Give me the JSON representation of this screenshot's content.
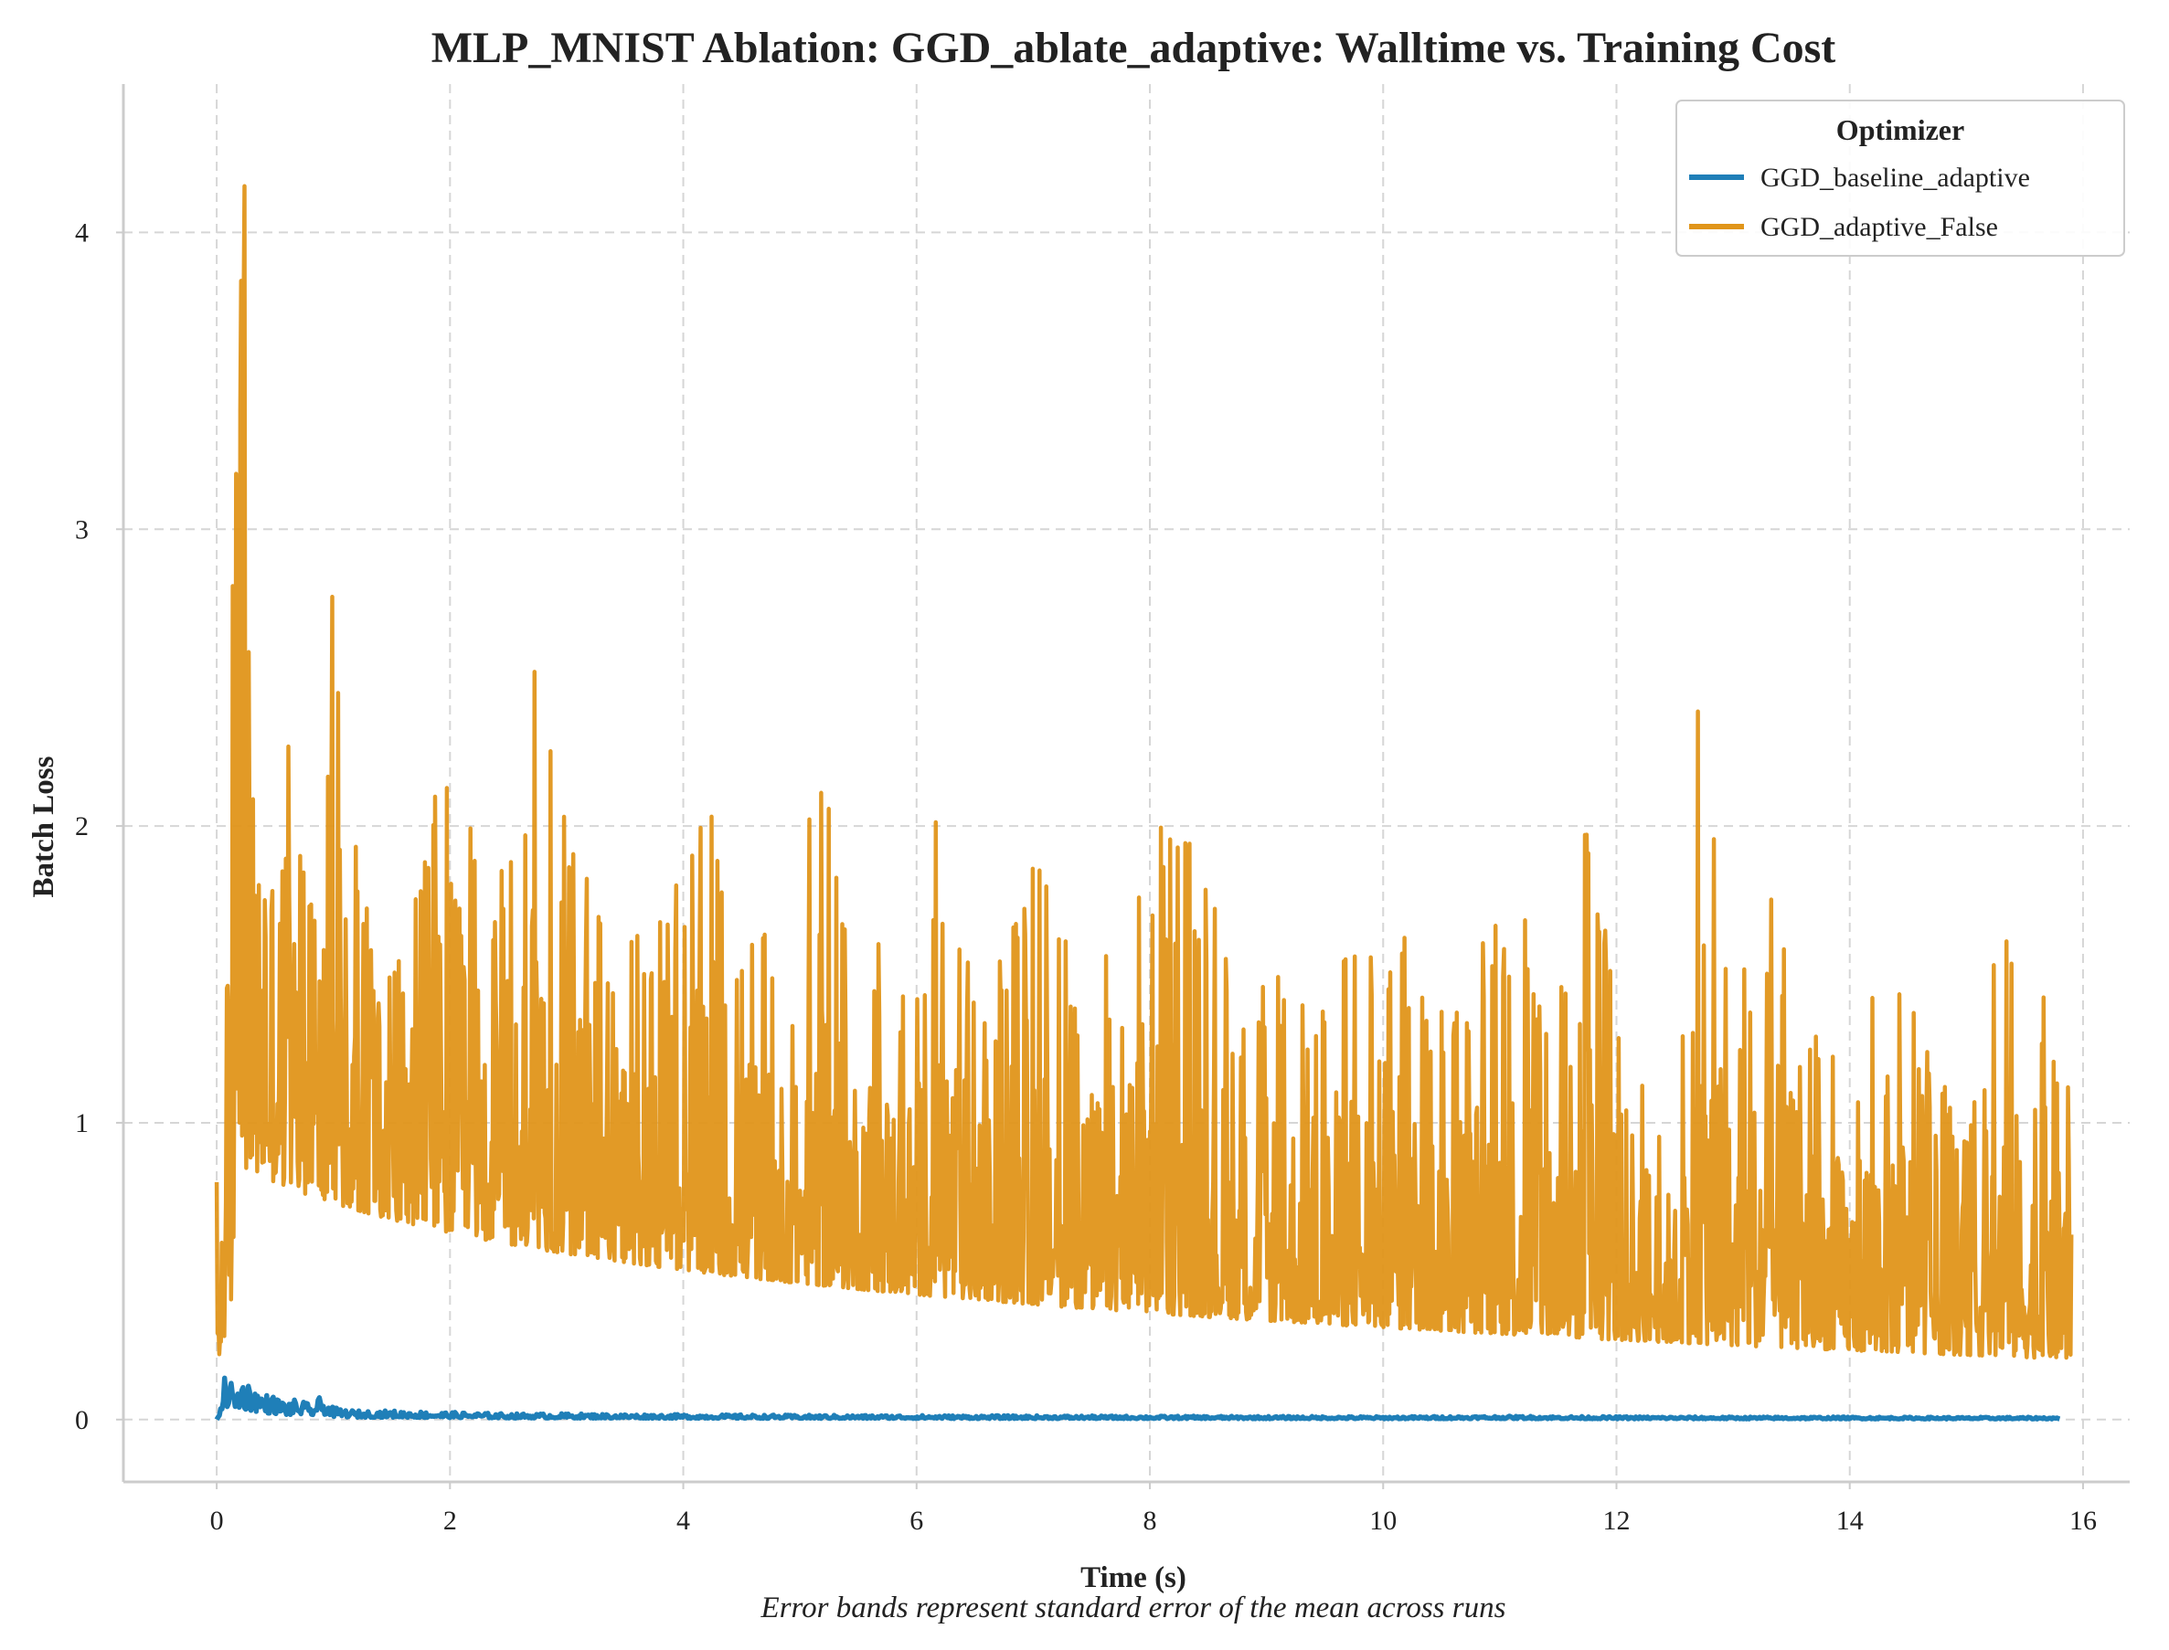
{
  "chart_data": {
    "type": "line",
    "title": "MLP_MNIST Ablation: GGD_ablate_adaptive: Walltime vs. Training Cost",
    "xlabel": "Time (s)",
    "ylabel": "Batch Loss",
    "caption": "Error bands represent standard error of the mean across runs",
    "xlim": [
      -0.8,
      16.4
    ],
    "ylim": [
      -0.21,
      4.5
    ],
    "x_ticks": [
      0,
      2,
      4,
      6,
      8,
      10,
      12,
      14,
      16
    ],
    "x_tick_labels": [
      "0",
      "2",
      "4",
      "6",
      "8",
      "10",
      "12",
      "14",
      "16"
    ],
    "y_ticks": [
      0,
      1,
      2,
      3,
      4
    ],
    "y_tick_labels": [
      "0",
      "1",
      "2",
      "3",
      "4"
    ],
    "grid": true,
    "legend": {
      "title": "Optimizer",
      "placement": "top-right"
    },
    "series": [
      {
        "name": "GGD_baseline_adaptive",
        "color": "#1f7fb8",
        "x": [
          0,
          0.05,
          0.1,
          0.15,
          0.2,
          0.3,
          0.4,
          0.5,
          0.6,
          0.7,
          0.8,
          0.9,
          1.0,
          1.2,
          1.5,
          2,
          2.5,
          3,
          3.5,
          4,
          5,
          6,
          7,
          8,
          9,
          10,
          11,
          12,
          13,
          14,
          15,
          15.8
        ],
        "y": [
          0.0,
          0.12,
          0.18,
          0.1,
          0.15,
          0.12,
          0.09,
          0.08,
          0.06,
          0.07,
          0.05,
          0.08,
          0.04,
          0.03,
          0.03,
          0.025,
          0.02,
          0.02,
          0.018,
          0.017,
          0.015,
          0.014,
          0.013,
          0.012,
          0.011,
          0.01,
          0.012,
          0.01,
          0.009,
          0.009,
          0.008,
          0.008
        ]
      },
      {
        "name": "GGD_adaptive_False",
        "color": "#e0951a",
        "x": [
          0,
          0.05,
          0.1,
          0.15,
          0.2,
          0.25,
          0.3,
          0.35,
          0.4,
          0.5,
          0.6,
          0.7,
          0.8,
          0.9,
          1.0,
          1.2,
          1.4,
          1.6,
          1.8,
          2.0,
          2.2,
          2.4,
          2.6,
          2.75,
          3.0,
          3.2,
          3.5,
          3.8,
          4.0,
          4.2,
          4.5,
          4.8,
          5.0,
          5.1,
          5.4,
          5.7,
          6.0,
          6.2,
          6.4,
          6.6,
          7.0,
          7.4,
          7.8,
          8.0,
          8.4,
          8.8,
          9.0,
          9.5,
          10.0,
          10.5,
          11.0,
          11.2,
          11.5,
          11.7,
          12.0,
          12.5,
          12.7,
          13.0,
          13.3,
          13.6,
          14.0,
          14.3,
          14.6,
          15.0,
          15.3,
          15.6,
          15.75,
          15.9
        ],
        "y": [
          0.8,
          1.2,
          2.6,
          3.1,
          3.8,
          4.28,
          2.9,
          2.6,
          3.25,
          2.5,
          2.8,
          2.3,
          1.8,
          2.2,
          2.9,
          1.9,
          1.5,
          1.6,
          2.05,
          2.56,
          2.0,
          1.9,
          2.05,
          2.62,
          2.0,
          1.8,
          1.6,
          1.75,
          1.95,
          2.4,
          1.7,
          1.6,
          1.5,
          2.42,
          1.8,
          1.6,
          1.5,
          2.15,
          1.6,
          1.4,
          2.0,
          1.5,
          1.65,
          2.03,
          1.95,
          1.4,
          1.5,
          1.5,
          1.74,
          1.45,
          1.75,
          1.82,
          1.5,
          2.06,
          1.58,
          1.0,
          2.5,
          1.4,
          1.81,
          1.45,
          1.2,
          1.71,
          1.3,
          1.0,
          1.75,
          1.2,
          1.82,
          1.15
        ]
      }
    ]
  }
}
